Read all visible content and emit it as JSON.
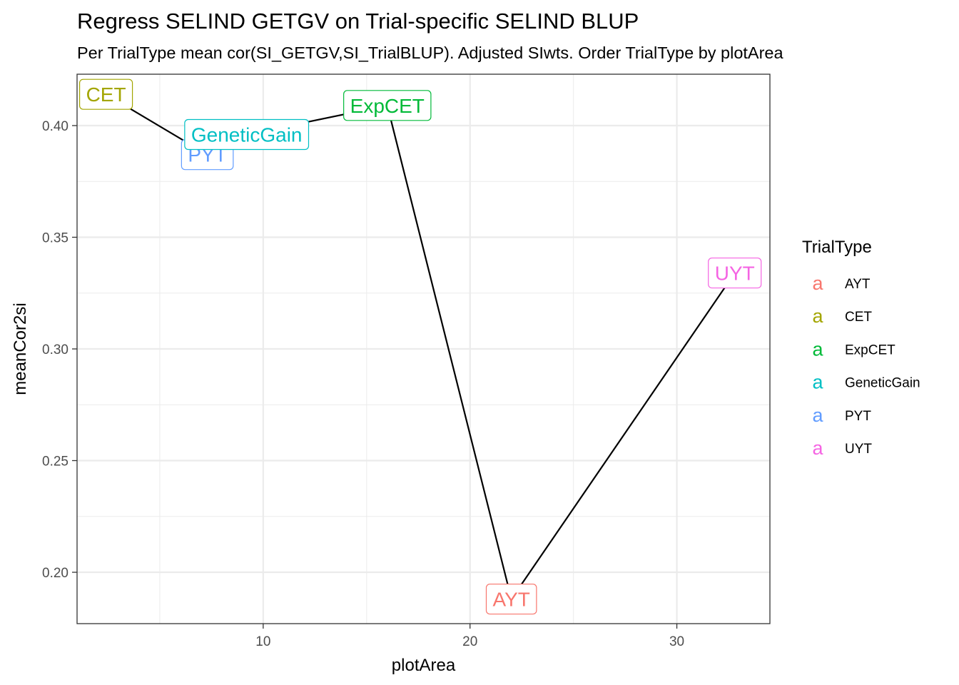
{
  "chart_data": {
    "type": "line",
    "title": "Regress SELIND GETGV on Trial-specific SELIND BLUP",
    "subtitle": "Per TrialType mean cor(SI_GETGV,SI_TrialBLUP). Adjusted SIwts. Order TrialType by plotArea",
    "xlabel": "plotArea",
    "ylabel": "meanCor2si",
    "xlim": [
      1.0,
      34.5
    ],
    "ylim": [
      0.177,
      0.423
    ],
    "x_ticks": [
      10,
      20,
      30
    ],
    "y_ticks": [
      0.2,
      0.25,
      0.3,
      0.35,
      0.4
    ],
    "x_tick_labels": [
      "10",
      "20",
      "30"
    ],
    "y_tick_labels": [
      "0.20",
      "0.25",
      "0.30",
      "0.35",
      "0.40"
    ],
    "grid": true,
    "legend_position": "right",
    "legend_title": "TrialType",
    "legend_key_glyph": "a",
    "series": [
      {
        "name": "CET",
        "color": "#A3A500"
      },
      {
        "name": "PYT",
        "color": "#619CFF"
      },
      {
        "name": "GeneticGain",
        "color": "#00BFC4"
      },
      {
        "name": "ExpCET",
        "color": "#00BA38"
      },
      {
        "name": "AYT",
        "color": "#F8766D"
      },
      {
        "name": "UYT",
        "color": "#F564E3"
      }
    ],
    "legend_order": [
      "AYT",
      "CET",
      "ExpCET",
      "GeneticGain",
      "PYT",
      "UYT"
    ],
    "points": [
      {
        "label": "CET",
        "x": 2.4,
        "y": 0.414
      },
      {
        "label": "PYT",
        "x": 7.3,
        "y": 0.387
      },
      {
        "label": "GeneticGain",
        "x": 9.2,
        "y": 0.396
      },
      {
        "label": "ExpCET",
        "x": 16.0,
        "y": 0.409
      },
      {
        "label": "AYT",
        "x": 22.0,
        "y": 0.188
      },
      {
        "label": "UYT",
        "x": 32.8,
        "y": 0.334
      }
    ]
  }
}
